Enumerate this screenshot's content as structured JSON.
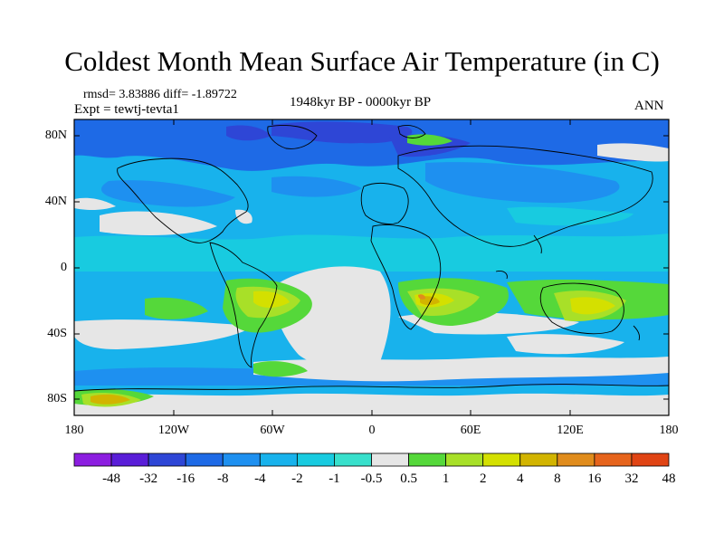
{
  "title": "Coldest Month Mean Surface Air Temperature (in C)",
  "stats": "rmsd= 3.83886 diff= -1.89722",
  "expt": "Expt = tewtj-tevta1",
  "period": "1948kyr BP - 0000kyr BP",
  "season": "ANN",
  "lat_labels": [
    "80N",
    "40N",
    "0",
    "40S",
    "80S"
  ],
  "lon_labels": [
    "180",
    "120W",
    "60W",
    "0",
    "60E",
    "120E",
    "180"
  ],
  "colorbar": {
    "labels": [
      "-48",
      "-32",
      "-16",
      "-8",
      "-4",
      "-2",
      "-1",
      "-0.5",
      "0.5",
      "1",
      "2",
      "4",
      "8",
      "16",
      "32",
      "48"
    ],
    "colors": [
      "#8c1ee0",
      "#5a1ed8",
      "#2e46d6",
      "#1e6ae6",
      "#1e90f0",
      "#18b2ec",
      "#18cbe0",
      "#38e0cc",
      "#e6e6e6",
      "#55d83a",
      "#a8e028",
      "#d4e000",
      "#d2b400",
      "#e08c1c",
      "#e6641c",
      "#e04414"
    ]
  }
}
